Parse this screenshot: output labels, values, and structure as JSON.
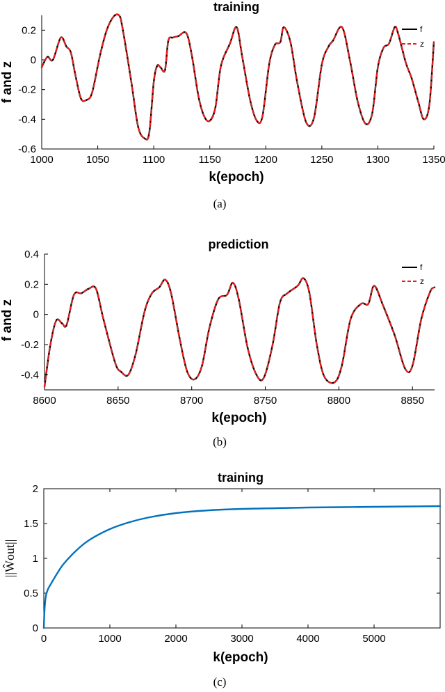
{
  "chart_data": [
    {
      "type": "line",
      "panel": "(a)",
      "title": "training",
      "xlabel": "k(epoch)",
      "ylabel": "f and z",
      "xlim": [
        1000,
        1350
      ],
      "ylim": [
        -0.6,
        0.3
      ],
      "xticks": [
        1000,
        1050,
        1100,
        1150,
        1200,
        1250,
        1300,
        1350
      ],
      "yticks": [
        -0.6,
        -0.4,
        -0.2,
        0,
        0.2
      ],
      "ytick_labels": [
        "-0.6",
        "-0.4",
        "-0.2",
        "0",
        "0.2"
      ],
      "legend": "top-right",
      "x": [
        1000,
        1005,
        1010,
        1017,
        1022,
        1026,
        1030,
        1035,
        1040,
        1045,
        1052,
        1058,
        1064,
        1069,
        1072,
        1080,
        1086,
        1092,
        1096,
        1100,
        1103,
        1106,
        1110,
        1113,
        1117,
        1122,
        1129,
        1134,
        1140,
        1145,
        1150,
        1155,
        1160,
        1168,
        1174,
        1179,
        1186,
        1192,
        1197,
        1203,
        1208,
        1213,
        1216,
        1222,
        1228,
        1236,
        1243,
        1250,
        1256,
        1260,
        1268,
        1275,
        1282,
        1289,
        1295,
        1300,
        1305,
        1310,
        1315,
        1318,
        1325,
        1330,
        1336,
        1341,
        1346,
        1350
      ],
      "series": [
        {
          "name": "f",
          "color": "#000000",
          "style": "solid",
          "values": [
            -0.05,
            0.02,
            0.0,
            0.15,
            0.09,
            0.05,
            -0.1,
            -0.26,
            -0.27,
            -0.22,
            0.03,
            0.2,
            0.29,
            0.3,
            0.22,
            -0.15,
            -0.45,
            -0.53,
            -0.49,
            -0.15,
            -0.04,
            -0.05,
            -0.07,
            0.13,
            0.15,
            0.16,
            0.18,
            0.03,
            -0.25,
            -0.38,
            -0.41,
            -0.32,
            -0.04,
            0.11,
            0.22,
            0.02,
            -0.27,
            -0.41,
            -0.38,
            -0.03,
            0.1,
            0.12,
            0.22,
            0.12,
            -0.15,
            -0.42,
            -0.39,
            -0.03,
            0.09,
            0.13,
            0.22,
            0.0,
            -0.28,
            -0.43,
            -0.36,
            -0.05,
            0.08,
            0.11,
            0.22,
            0.18,
            -0.02,
            -0.12,
            -0.28,
            -0.4,
            -0.3,
            0.12
          ]
        },
        {
          "name": "z",
          "color": "#ee1c1c",
          "style": "dashed",
          "values": [
            -0.05,
            0.02,
            0.0,
            0.15,
            0.09,
            0.05,
            -0.1,
            -0.26,
            -0.27,
            -0.22,
            0.03,
            0.2,
            0.29,
            0.3,
            0.22,
            -0.15,
            -0.45,
            -0.53,
            -0.49,
            -0.15,
            -0.04,
            -0.05,
            -0.07,
            0.13,
            0.15,
            0.16,
            0.18,
            0.03,
            -0.25,
            -0.38,
            -0.41,
            -0.32,
            -0.04,
            0.11,
            0.22,
            0.02,
            -0.27,
            -0.41,
            -0.38,
            -0.03,
            0.1,
            0.12,
            0.22,
            0.12,
            -0.15,
            -0.42,
            -0.39,
            -0.03,
            0.09,
            0.13,
            0.22,
            0.0,
            -0.28,
            -0.43,
            -0.36,
            -0.05,
            0.08,
            0.11,
            0.22,
            0.18,
            -0.02,
            -0.12,
            -0.28,
            -0.4,
            -0.3,
            0.12
          ]
        }
      ]
    },
    {
      "type": "line",
      "panel": "(b)",
      "title": "prediction",
      "xlabel": "k(epoch)",
      "ylabel": "f and z",
      "xlim": [
        8600,
        8865
      ],
      "ylim": [
        -0.5,
        0.4
      ],
      "xticks": [
        8600,
        8650,
        8700,
        8750,
        8800,
        8850
      ],
      "yticks": [
        -0.4,
        -0.2,
        0,
        0.2,
        0.4
      ],
      "ytick_labels": [
        "-0.4",
        "-0.2",
        "0",
        "0.2",
        "0.4"
      ],
      "legend": "top-right",
      "x": [
        8600,
        8604,
        8608,
        8612,
        8615,
        8620,
        8625,
        8630,
        8635,
        8640,
        8648,
        8652,
        8657,
        8662,
        8668,
        8673,
        8678,
        8682,
        8686,
        8692,
        8697,
        8702,
        8707,
        8712,
        8718,
        8724,
        8728,
        8732,
        8738,
        8744,
        8749,
        8755,
        8760,
        8765,
        8772,
        8776,
        8780,
        8785,
        8790,
        8797,
        8802,
        8808,
        8815,
        8820,
        8824,
        8830,
        8838,
        8845,
        8850,
        8856,
        8862,
        8865
      ],
      "series": [
        {
          "name": "f",
          "color": "#000000",
          "style": "solid",
          "values": [
            -0.48,
            -0.2,
            -0.04,
            -0.06,
            -0.07,
            0.13,
            0.14,
            0.17,
            0.17,
            -0.03,
            -0.32,
            -0.38,
            -0.4,
            -0.26,
            0.02,
            0.14,
            0.18,
            0.23,
            0.14,
            -0.17,
            -0.38,
            -0.43,
            -0.34,
            -0.09,
            0.1,
            0.13,
            0.21,
            0.1,
            -0.22,
            -0.4,
            -0.42,
            -0.2,
            0.08,
            0.14,
            0.19,
            0.24,
            0.14,
            -0.2,
            -0.41,
            -0.45,
            -0.34,
            -0.03,
            0.07,
            0.07,
            0.19,
            0.06,
            -0.14,
            -0.36,
            -0.34,
            -0.03,
            0.15,
            0.18
          ]
        },
        {
          "name": "z",
          "color": "#ee1c1c",
          "style": "dashed",
          "values": [
            -0.48,
            -0.2,
            -0.04,
            -0.06,
            -0.07,
            0.13,
            0.14,
            0.17,
            0.17,
            -0.03,
            -0.32,
            -0.38,
            -0.4,
            -0.26,
            0.02,
            0.14,
            0.18,
            0.23,
            0.14,
            -0.17,
            -0.38,
            -0.43,
            -0.34,
            -0.09,
            0.1,
            0.13,
            0.21,
            0.1,
            -0.22,
            -0.4,
            -0.42,
            -0.2,
            0.08,
            0.14,
            0.19,
            0.24,
            0.14,
            -0.2,
            -0.41,
            -0.45,
            -0.34,
            -0.03,
            0.07,
            0.07,
            0.19,
            0.06,
            -0.14,
            -0.36,
            -0.34,
            -0.03,
            0.15,
            0.18
          ]
        }
      ]
    },
    {
      "type": "line",
      "panel": "(c)",
      "title": "training",
      "xlabel": "k(epoch)",
      "ylabel": "||Ŵout||",
      "xlim": [
        0,
        6000
      ],
      "ylim": [
        0,
        2
      ],
      "xticks": [
        0,
        1000,
        2000,
        3000,
        4000,
        5000
      ],
      "yticks": [
        0,
        0.5,
        1,
        1.5,
        2
      ],
      "ytick_labels": [
        "0",
        "0.5",
        "1",
        "1.5",
        "2"
      ],
      "legend": "none",
      "x": [
        0,
        10,
        30,
        60,
        100,
        200,
        300,
        500,
        700,
        1000,
        1300,
        1600,
        2000,
        2500,
        3000,
        3500,
        4000,
        4500,
        5000,
        5500,
        6000
      ],
      "series": [
        {
          "name": "",
          "color": "#0072bd",
          "style": "solid",
          "values": [
            0,
            0.25,
            0.45,
            0.55,
            0.62,
            0.78,
            0.92,
            1.12,
            1.27,
            1.42,
            1.52,
            1.59,
            1.65,
            1.69,
            1.71,
            1.72,
            1.73,
            1.735,
            1.74,
            1.745,
            1.75
          ]
        }
      ]
    }
  ],
  "captions": [
    "(a)",
    "(b)",
    "(c)"
  ]
}
